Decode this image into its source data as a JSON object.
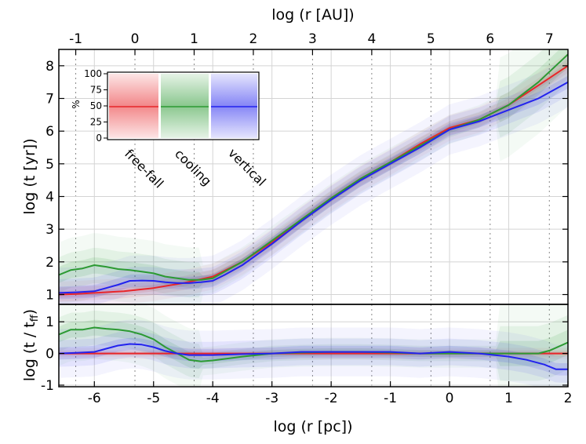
{
  "chart_data": {
    "type": "line",
    "panels": [
      "top",
      "bottom"
    ],
    "x": {
      "label": "log (r [pc])",
      "range": [
        -6.6,
        2.0
      ],
      "ticks": [
        -6,
        -5,
        -4,
        -3,
        -2,
        -1,
        0,
        1,
        2
      ],
      "tick_labels": [
        "-6",
        "-5",
        "-4",
        "-3",
        "-2",
        "-1",
        "0",
        "1",
        "2"
      ]
    },
    "x_top": {
      "label": "log (r [AU])",
      "offset_from_pc": 5.3144,
      "ticks": [
        -1,
        0,
        1,
        2,
        3,
        4,
        5,
        6,
        7
      ],
      "tick_labels": [
        "-1",
        "0",
        "1",
        "2",
        "3",
        "4",
        "5",
        "6",
        "7"
      ]
    },
    "top_panel": {
      "ylabel": "log (t [yr])",
      "ylim": [
        0.7,
        8.5
      ],
      "ticks": [
        1,
        2,
        3,
        4,
        5,
        6,
        7,
        8
      ],
      "tick_labels": [
        "1",
        "2",
        "3",
        "4",
        "5",
        "6",
        "7",
        "8"
      ],
      "series": [
        {
          "name": "free-fall",
          "color": "#e8262a",
          "x": [
            -6.6,
            -6.3,
            -6.0,
            -5.5,
            -5.0,
            -4.5,
            -4.0,
            -3.5,
            -3.0,
            -2.5,
            -2.0,
            -1.5,
            -1.0,
            -0.5,
            0.0,
            0.5,
            1.0,
            1.5,
            2.0
          ],
          "y": [
            1.0,
            1.02,
            1.05,
            1.1,
            1.2,
            1.35,
            1.55,
            2.0,
            2.6,
            3.3,
            3.95,
            4.55,
            5.05,
            5.6,
            6.1,
            6.35,
            6.8,
            7.4,
            8.0
          ]
        },
        {
          "name": "cooling",
          "color": "#2c9a33",
          "x": [
            -6.6,
            -6.4,
            -6.2,
            -6.0,
            -5.8,
            -5.6,
            -5.4,
            -5.2,
            -5.0,
            -4.8,
            -4.6,
            -4.4,
            -4.2,
            -4.0,
            -3.5,
            -3.0,
            -2.5,
            -2.0,
            -1.5,
            -1.0,
            -0.5,
            0.0,
            0.5,
            1.0,
            1.5,
            2.0
          ],
          "y": [
            1.6,
            1.75,
            1.8,
            1.9,
            1.85,
            1.78,
            1.75,
            1.7,
            1.65,
            1.55,
            1.5,
            1.45,
            1.45,
            1.5,
            2.0,
            2.65,
            3.3,
            3.95,
            4.55,
            5.05,
            5.55,
            6.05,
            6.35,
            6.8,
            7.5,
            8.35
          ]
        },
        {
          "name": "vertical",
          "color": "#2323ee",
          "x": [
            -6.6,
            -6.3,
            -6.0,
            -5.8,
            -5.6,
            -5.4,
            -5.2,
            -5.0,
            -4.8,
            -4.6,
            -4.4,
            -4.2,
            -4.0,
            -3.8,
            -3.5,
            -3.0,
            -2.5,
            -2.0,
            -1.5,
            -1.0,
            -0.5,
            0.0,
            0.5,
            1.0,
            1.5,
            2.0
          ],
          "y": [
            1.05,
            1.07,
            1.1,
            1.2,
            1.3,
            1.42,
            1.43,
            1.42,
            1.38,
            1.35,
            1.35,
            1.38,
            1.42,
            1.6,
            1.9,
            2.55,
            3.25,
            3.9,
            4.5,
            5.0,
            5.5,
            6.05,
            6.3,
            6.65,
            7.0,
            7.5
          ]
        }
      ]
    },
    "bottom_panel": {
      "ylabel": "log (t / t",
      "ylabel_sub": "ff",
      "ylabel_close": ")",
      "ylim": [
        -1.05,
        1.55
      ],
      "ticks": [
        -1,
        0,
        1
      ],
      "tick_labels": [
        "-1",
        "0",
        "1"
      ],
      "series": [
        {
          "name": "free-fall",
          "color": "#e8262a",
          "x": [
            -6.6,
            2.0
          ],
          "y": [
            0.0,
            0.0
          ]
        },
        {
          "name": "cooling",
          "color": "#2c9a33",
          "x": [
            -6.6,
            -6.4,
            -6.2,
            -6.0,
            -5.8,
            -5.6,
            -5.4,
            -5.2,
            -5.0,
            -4.8,
            -4.6,
            -4.4,
            -4.2,
            -4.0,
            -3.5,
            -3.0,
            -2.5,
            -2.0,
            -1.5,
            -1.0,
            -0.5,
            0.0,
            0.5,
            1.0,
            1.5,
            1.7,
            2.0
          ],
          "y": [
            0.6,
            0.75,
            0.75,
            0.82,
            0.78,
            0.75,
            0.7,
            0.6,
            0.45,
            0.2,
            0.0,
            -0.2,
            -0.25,
            -0.22,
            -0.1,
            0.0,
            0.03,
            0.05,
            0.05,
            0.03,
            0.0,
            0.0,
            0.0,
            0.0,
            0.0,
            0.1,
            0.35
          ]
        },
        {
          "name": "vertical",
          "color": "#2323ee",
          "x": [
            -6.6,
            -6.3,
            -6.0,
            -5.8,
            -5.6,
            -5.4,
            -5.2,
            -5.0,
            -4.8,
            -4.6,
            -4.4,
            -4.2,
            -4.0,
            -3.5,
            -3.0,
            -2.5,
            -2.0,
            -1.5,
            -1.0,
            -0.5,
            0.0,
            0.5,
            1.0,
            1.3,
            1.6,
            1.8,
            2.0
          ],
          "y": [
            0.0,
            0.02,
            0.05,
            0.15,
            0.25,
            0.3,
            0.28,
            0.2,
            0.08,
            0.0,
            -0.05,
            -0.05,
            -0.05,
            -0.02,
            0.0,
            0.05,
            0.05,
            0.05,
            0.05,
            0.0,
            0.05,
            0.0,
            -0.1,
            -0.2,
            -0.35,
            -0.5,
            -0.5
          ]
        }
      ]
    },
    "legend": {
      "ylabel": "%",
      "ticks": [
        0,
        25,
        50,
        75,
        100
      ],
      "tick_labels": [
        "0",
        "25",
        "50",
        "75",
        "100"
      ],
      "median": 50,
      "entries": [
        "free-fall",
        "cooling",
        "vertical"
      ],
      "colors": [
        "#e8262a",
        "#2c9a33",
        "#2323ee"
      ]
    }
  }
}
